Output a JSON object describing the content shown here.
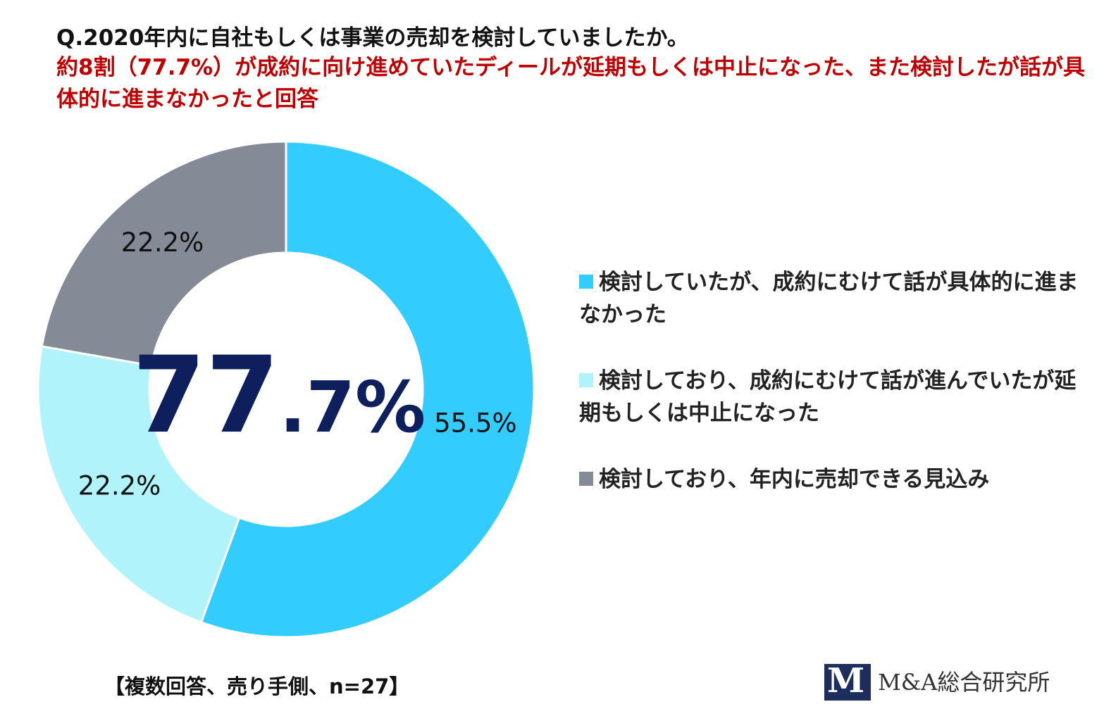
{
  "title": {
    "question": "Q.2020年内に自社もしくは事業の売却を検討していましたか。",
    "subtitle": "約8割（77.7%）が成約に向け進めていたディールが延期もしくは中止になった、また検討したが話が具体的に進まなかったと回答"
  },
  "chart_data": {
    "type": "pie",
    "style": "donut",
    "slices": [
      {
        "label": "検討していたが、成約にむけて話が具体的に進まなかった",
        "value": 55.5,
        "value_label": "55.5%",
        "color": "#33ccff"
      },
      {
        "label": "検討しており、成約にむけて話が進んでいたが延期もしくは中止になった",
        "value": 22.2,
        "value_label": "22.2%",
        "color": "#b0f3fa"
      },
      {
        "label": "検討しており、年内に売却できる見込み",
        "value": 22.2,
        "value_label": "22.2%",
        "color": "#848a96"
      }
    ],
    "center_label": {
      "major": "77",
      "minor": ".7%",
      "color": "#0d1f5c"
    },
    "legend_position": "right"
  },
  "footnote": "【複数回答、売り手側、n=27】",
  "logo": {
    "mark": "M",
    "text": "M&A総合研究所",
    "color": "#1d2d5c"
  }
}
